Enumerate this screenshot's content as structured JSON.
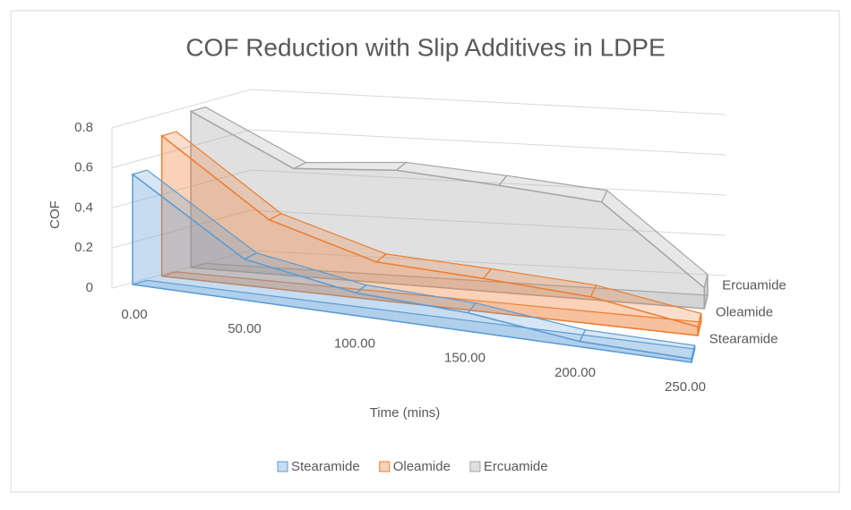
{
  "chart_data": {
    "type": "area3d",
    "title": "COF Reduction with Slip Additives in LDPE",
    "x_label": "Time (mins)",
    "y_label": "COF",
    "categories": [
      "0.00",
      "50.00",
      "100.00",
      "150.00",
      "200.00",
      "250.00"
    ],
    "series": [
      {
        "name": "Stearamide",
        "color": "#5b9bd5",
        "values": [
          0.55,
          0.21,
          0.12,
          0.1,
          0.03,
          0.02
        ]
      },
      {
        "name": "Oleamide",
        "color": "#ed7d31",
        "values": [
          0.7,
          0.35,
          0.2,
          0.18,
          0.15,
          0.05
        ]
      },
      {
        "name": "Ercuamide",
        "color": "#a5a5a5",
        "values": [
          0.78,
          0.55,
          0.6,
          0.58,
          0.55,
          0.12
        ]
      }
    ],
    "ylim": [
      0,
      0.8
    ],
    "yticks": [
      0,
      0.2,
      0.4,
      0.6,
      0.8
    ],
    "grid": true,
    "legend": "bottom"
  }
}
